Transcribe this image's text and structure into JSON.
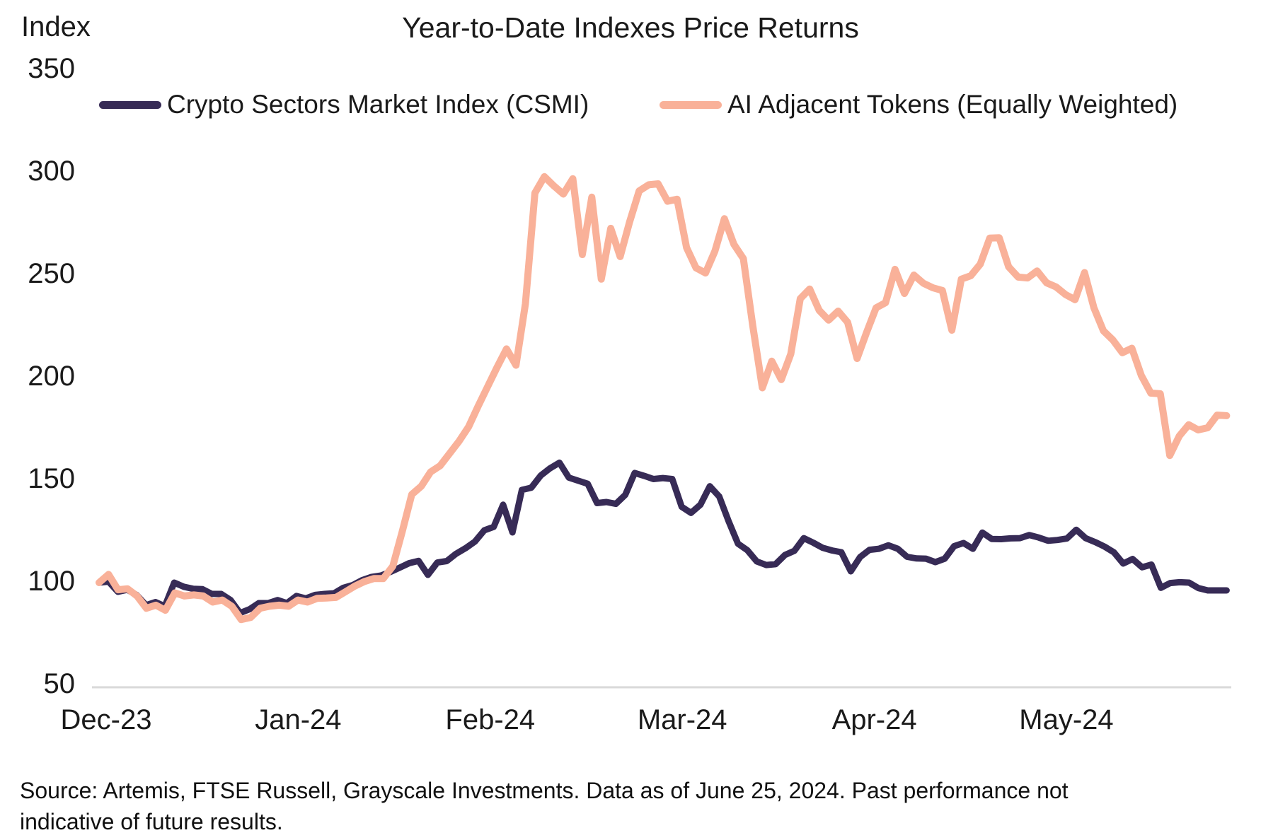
{
  "chart_data": {
    "type": "line",
    "title": "Year-to-Date Indexes Price Returns",
    "ylabel": "Index",
    "xlabel": "",
    "ylim": [
      50,
      350
    ],
    "y_ticks": [
      350,
      300,
      250,
      200,
      150,
      100,
      50
    ],
    "x_ticks": [
      "Dec-23",
      "Jan-24",
      "Feb-24",
      "Mar-24",
      "Apr-24",
      "May-24"
    ],
    "x_range_note": "daily data from Dec-23 through Jun 25, 2024",
    "grid": "baseline only",
    "legend_position": "top",
    "axis_line_color": "#D9D9D9",
    "series": [
      {
        "name": "Crypto Sectors Market Index (CSMI)",
        "color": "#372B56",
        "values": [
          100,
          100.5,
          95.5,
          96.5,
          94,
          89,
          90.5,
          88.5,
          100,
          98,
          97,
          96.8,
          94.5,
          94.5,
          91.5,
          85.2,
          87,
          90,
          90,
          91.5,
          90,
          93.5,
          92.3,
          94,
          94.5,
          94.8,
          97.5,
          98.8,
          101.2,
          102.8,
          103.5,
          105.2,
          107.3,
          109.5,
          110.6,
          103.8,
          109.8,
          110.5,
          114.1,
          116.8,
          120,
          125.5,
          127.2,
          138,
          124.5,
          145.2,
          146.3,
          152.2,
          155.8,
          158.5,
          151.2,
          149.7,
          148.2,
          138.8,
          139.3,
          138.4,
          142.8,
          153.5,
          152.1,
          150.5,
          151,
          150.5,
          137,
          134,
          138,
          147,
          142,
          130,
          119,
          115.8,
          110.3,
          108.6,
          109,
          113.5,
          115.5,
          121.7,
          119.5,
          117,
          115.7,
          114.8,
          105.5,
          112.5,
          116,
          116.5,
          118.2,
          116.5,
          112.6,
          111.8,
          111.7,
          110,
          111.7,
          117.8,
          119.3,
          116.5,
          124.4,
          121.3,
          121.2,
          121.6,
          121.7,
          123.2,
          122,
          120.4,
          120.8,
          121.5,
          125.8,
          121.7,
          119.8,
          117.6,
          114.8,
          109.3,
          111.5,
          107.5,
          108.8,
          97.5,
          99.8,
          100.2,
          100,
          97.3,
          96.2,
          96.2,
          96.2
        ]
      },
      {
        "name": "AI Adjacent Tokens (Equally Weighted)",
        "color": "#F9B199",
        "values": [
          100,
          104,
          96.5,
          97,
          93.5,
          87.5,
          89,
          86.5,
          95,
          93.5,
          94,
          93.5,
          90.5,
          91.5,
          88.5,
          82,
          83,
          87.5,
          88.5,
          89,
          88.5,
          91.5,
          90.5,
          92.3,
          92.5,
          92.8,
          95.5,
          98.3,
          100.5,
          102,
          102,
          108,
          125,
          143,
          147,
          154,
          157,
          163,
          169,
          176,
          186,
          195.5,
          205,
          214,
          206,
          236,
          290,
          298,
          293.5,
          289.5,
          297,
          260,
          288,
          248,
          272.8,
          259,
          276,
          291,
          294,
          294.5,
          286,
          287,
          263.4,
          253.5,
          251,
          261.7,
          277.5,
          265,
          258,
          225,
          195,
          208,
          199,
          211.5,
          238.5,
          243.2,
          232.8,
          228,
          232.4,
          227,
          209.3,
          222,
          234,
          236.5,
          252.8,
          241,
          250,
          246,
          243.8,
          242.5,
          223.1,
          248,
          249.7,
          255.3,
          268,
          268.2,
          254,
          249,
          248.6,
          252,
          246.2,
          244.2,
          240.5,
          238,
          251.2,
          234,
          222.8,
          218.3,
          212.1,
          214.3,
          201,
          192.4,
          192.1,
          162,
          171.5,
          177,
          174.5,
          175.5,
          181.7,
          181.4
        ]
      }
    ]
  },
  "source_note": "Source: Artemis, FTSE Russell, Grayscale Investments. Data as of June 25, 2024. Past performance not indicative of future results."
}
